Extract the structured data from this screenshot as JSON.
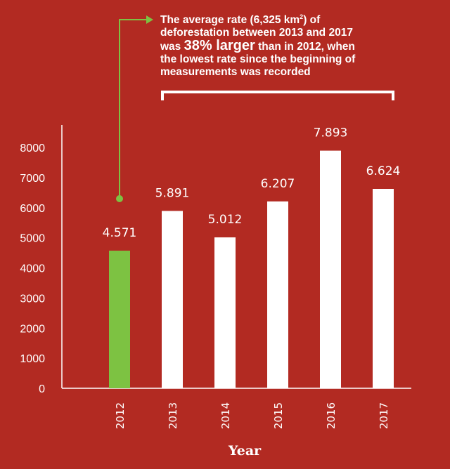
{
  "annotation": {
    "line1_pre": "The average rate (6,325 km",
    "line1_sup": "2",
    "line1_post": ") of",
    "line2": "deforestation between 2013 and 2017",
    "line3_pre": "was ",
    "line3_big": "38% larger",
    "line3_post": " than in 2012, when",
    "line4": "the lowest rate since the beginning of",
    "line5": "measurements was recorded"
  },
  "colors": {
    "background": "#b22a22",
    "highlight": "#7dc242",
    "bars": "#ffffff",
    "text": "#ffffff"
  },
  "chart_data": {
    "type": "bar",
    "categories": [
      "2012",
      "2013",
      "2014",
      "2015",
      "2016",
      "2017"
    ],
    "values": [
      4571,
      5891,
      5012,
      6207,
      7893,
      6624
    ],
    "value_labels": [
      "4.571",
      "5.891",
      "5.012",
      "6.207",
      "7.893",
      "6.624"
    ],
    "highlight_index": 0,
    "xlabel": "Year",
    "ylabel": "",
    "ylim": [
      0,
      8000
    ],
    "yticks": [
      "0",
      "1000",
      "2000",
      "3000",
      "4000",
      "5000",
      "6000",
      "7000",
      "8000"
    ],
    "grid": false,
    "legend": "none"
  }
}
